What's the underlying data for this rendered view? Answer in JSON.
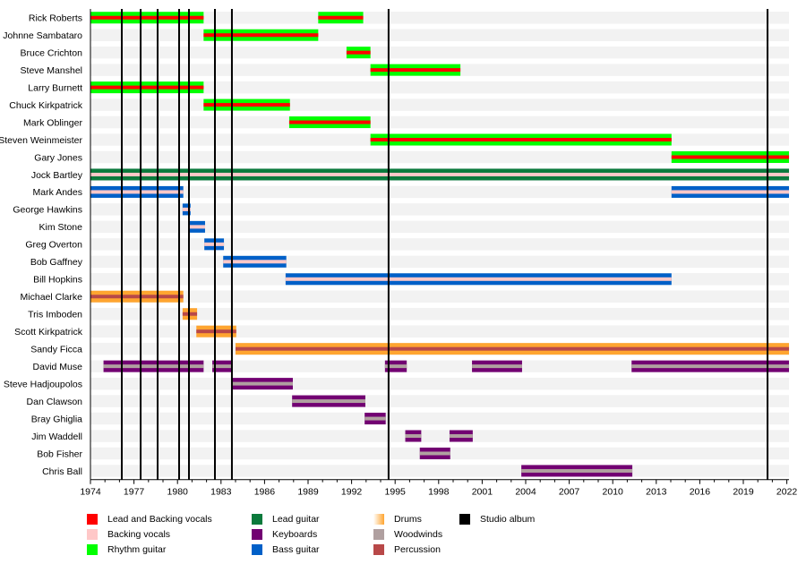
{
  "chart_data": {
    "type": "timeline",
    "title": "",
    "xlabel": "",
    "ylabel": "",
    "xlim": [
      1974,
      2022.15
    ],
    "x_ticks": [
      1974,
      1977,
      1980,
      1983,
      1986,
      1989,
      1992,
      1995,
      1998,
      2001,
      2004,
      2007,
      2010,
      2013,
      2016,
      2019,
      2022
    ],
    "x_tick_labels": [
      "1974",
      "1977",
      "1980",
      "1983",
      "1986",
      "1989",
      "1992",
      "1995",
      "1998",
      "2001",
      "2004",
      "2007",
      "2010",
      "2013",
      "2016",
      "2019",
      "2022"
    ],
    "grid": false,
    "legend_placement": "bottom",
    "colors": {
      "lead_and_backing_vocals": "#ff0000",
      "backing_vocals": "#ffc8c8",
      "rhythm_guitar": "#00ff00",
      "lead_guitar": "#0b7a3c",
      "keyboards": "#720072",
      "bass_guitar": "#0060c8",
      "drums": "#ffa530",
      "woodwinds": "#b0a0a0",
      "percussion": "#b84848",
      "studio_album": "#000000",
      "row_band": "#f2f2f2"
    },
    "legend": [
      {
        "label": "Lead and Backing vocals",
        "key": "lead_and_backing_vocals"
      },
      {
        "label": "Backing vocals",
        "key": "backing_vocals"
      },
      {
        "label": "Rhythm guitar",
        "key": "rhythm_guitar"
      },
      {
        "label": "Lead guitar",
        "key": "lead_guitar"
      },
      {
        "label": "Keyboards",
        "key": "keyboards"
      },
      {
        "label": "Bass guitar",
        "key": "bass_guitar"
      },
      {
        "label": "Drums",
        "key": "drums"
      },
      {
        "label": "Woodwinds",
        "key": "woodwinds"
      },
      {
        "label": "Percussion",
        "key": "percussion"
      },
      {
        "label": "Studio album",
        "key": "studio_album"
      }
    ],
    "studio_albums": [
      1976.16,
      1977.46,
      1978.63,
      1980.11,
      1980.79,
      1982.58,
      1983.75,
      1994.55,
      2020.67
    ],
    "members": [
      {
        "name": "Rick Roberts",
        "outer": "rhythm_guitar",
        "inner": "lead_and_backing_vocals",
        "periods": [
          [
            1974,
            1981.8
          ],
          [
            1989.7,
            1992.8
          ]
        ]
      },
      {
        "name": "Johnne Sambataro",
        "outer": "rhythm_guitar",
        "inner": "lead_and_backing_vocals",
        "periods": [
          [
            1981.8,
            1989.7
          ]
        ]
      },
      {
        "name": "Bruce Crichton",
        "outer": "rhythm_guitar",
        "inner": "lead_and_backing_vocals",
        "periods": [
          [
            1991.65,
            1993.3
          ]
        ]
      },
      {
        "name": "Steve Manshel",
        "outer": "rhythm_guitar",
        "inner": "lead_and_backing_vocals",
        "periods": [
          [
            1993.3,
            1999.5
          ]
        ]
      },
      {
        "name": "Larry Burnett",
        "outer": "rhythm_guitar",
        "inner": "lead_and_backing_vocals",
        "periods": [
          [
            1974,
            1981.8
          ]
        ]
      },
      {
        "name": "Chuck Kirkpatrick",
        "outer": "rhythm_guitar",
        "inner": "lead_and_backing_vocals",
        "periods": [
          [
            1981.8,
            1987.75
          ]
        ]
      },
      {
        "name": "Mark Oblinger",
        "outer": "rhythm_guitar",
        "inner": "lead_and_backing_vocals",
        "periods": [
          [
            1987.7,
            1993.3
          ]
        ]
      },
      {
        "name": "Steven Weinmeister",
        "outer": "rhythm_guitar",
        "inner": "lead_and_backing_vocals",
        "periods": [
          [
            1993.3,
            2014.05
          ]
        ]
      },
      {
        "name": "Gary Jones",
        "outer": "rhythm_guitar",
        "inner": "lead_and_backing_vocals",
        "periods": [
          [
            2014.05,
            2022.15
          ]
        ]
      },
      {
        "name": "Jock Bartley",
        "outer": "lead_guitar",
        "inner": "backing_vocals",
        "periods": [
          [
            1974,
            2022.15
          ]
        ]
      },
      {
        "name": "Mark Andes",
        "outer": "bass_guitar",
        "inner": "backing_vocals",
        "periods": [
          [
            1974,
            1980.4
          ],
          [
            2014.05,
            2022.15
          ]
        ]
      },
      {
        "name": "George Hawkins",
        "outer": "bass_guitar",
        "inner": "backing_vocals",
        "periods": [
          [
            1980.35,
            1980.9
          ]
        ]
      },
      {
        "name": "Kim Stone",
        "outer": "bass_guitar",
        "inner": "backing_vocals",
        "periods": [
          [
            1980.85,
            1981.9
          ]
        ]
      },
      {
        "name": "Greg Overton",
        "outer": "bass_guitar",
        "inner": "backing_vocals",
        "periods": [
          [
            1981.85,
            1983.2
          ]
        ]
      },
      {
        "name": "Bob Gaffney",
        "outer": "bass_guitar",
        "inner": "backing_vocals",
        "periods": [
          [
            1983.15,
            1987.5
          ]
        ]
      },
      {
        "name": "Bill Hopkins",
        "outer": "bass_guitar",
        "inner": "backing_vocals",
        "periods": [
          [
            1987.45,
            2014.05
          ]
        ]
      },
      {
        "name": "Michael Clarke",
        "outer": "drums",
        "inner": "percussion",
        "periods": [
          [
            1974,
            1980.4
          ]
        ]
      },
      {
        "name": "Tris Imboden",
        "outer": "drums",
        "inner": "percussion",
        "periods": [
          [
            1980.35,
            1981.35
          ]
        ]
      },
      {
        "name": "Scott Kirkpatrick",
        "outer": "drums",
        "inner": "percussion",
        "periods": [
          [
            1981.3,
            1984.05
          ]
        ]
      },
      {
        "name": "Sandy Ficca",
        "outer": "drums",
        "inner": "percussion",
        "periods": [
          [
            1984.0,
            2022.15
          ]
        ]
      },
      {
        "name": "David Muse",
        "outer": "keyboards",
        "inner": "woodwinds",
        "periods": [
          [
            1974.9,
            1981.8
          ],
          [
            1982.4,
            1983.8
          ],
          [
            1994.3,
            1995.8
          ],
          [
            2000.3,
            2003.75
          ],
          [
            2011.3,
            2022.15
          ]
        ]
      },
      {
        "name": "Steve Hadjoupolos",
        "outer": "keyboards",
        "inner": "woodwinds",
        "periods": [
          [
            1983.75,
            1987.95
          ]
        ]
      },
      {
        "name": "Dan Clawson",
        "outer": "keyboards",
        "inner": "woodwinds",
        "periods": [
          [
            1987.9,
            1992.95
          ]
        ]
      },
      {
        "name": "Bray Ghiglia",
        "outer": "keyboards",
        "inner": "woodwinds",
        "periods": [
          [
            1992.9,
            1994.35
          ]
        ]
      },
      {
        "name": "Jim Waddell",
        "outer": "keyboards",
        "inner": "woodwinds",
        "periods": [
          [
            1995.7,
            1996.8
          ],
          [
            1998.75,
            2000.35
          ]
        ]
      },
      {
        "name": "Bob Fisher",
        "outer": "keyboards",
        "inner": "woodwinds",
        "periods": [
          [
            1996.7,
            1998.8
          ]
        ]
      },
      {
        "name": "Chris Ball",
        "outer": "keyboards",
        "inner": "woodwinds",
        "periods": [
          [
            2003.7,
            2011.35
          ]
        ]
      }
    ]
  }
}
